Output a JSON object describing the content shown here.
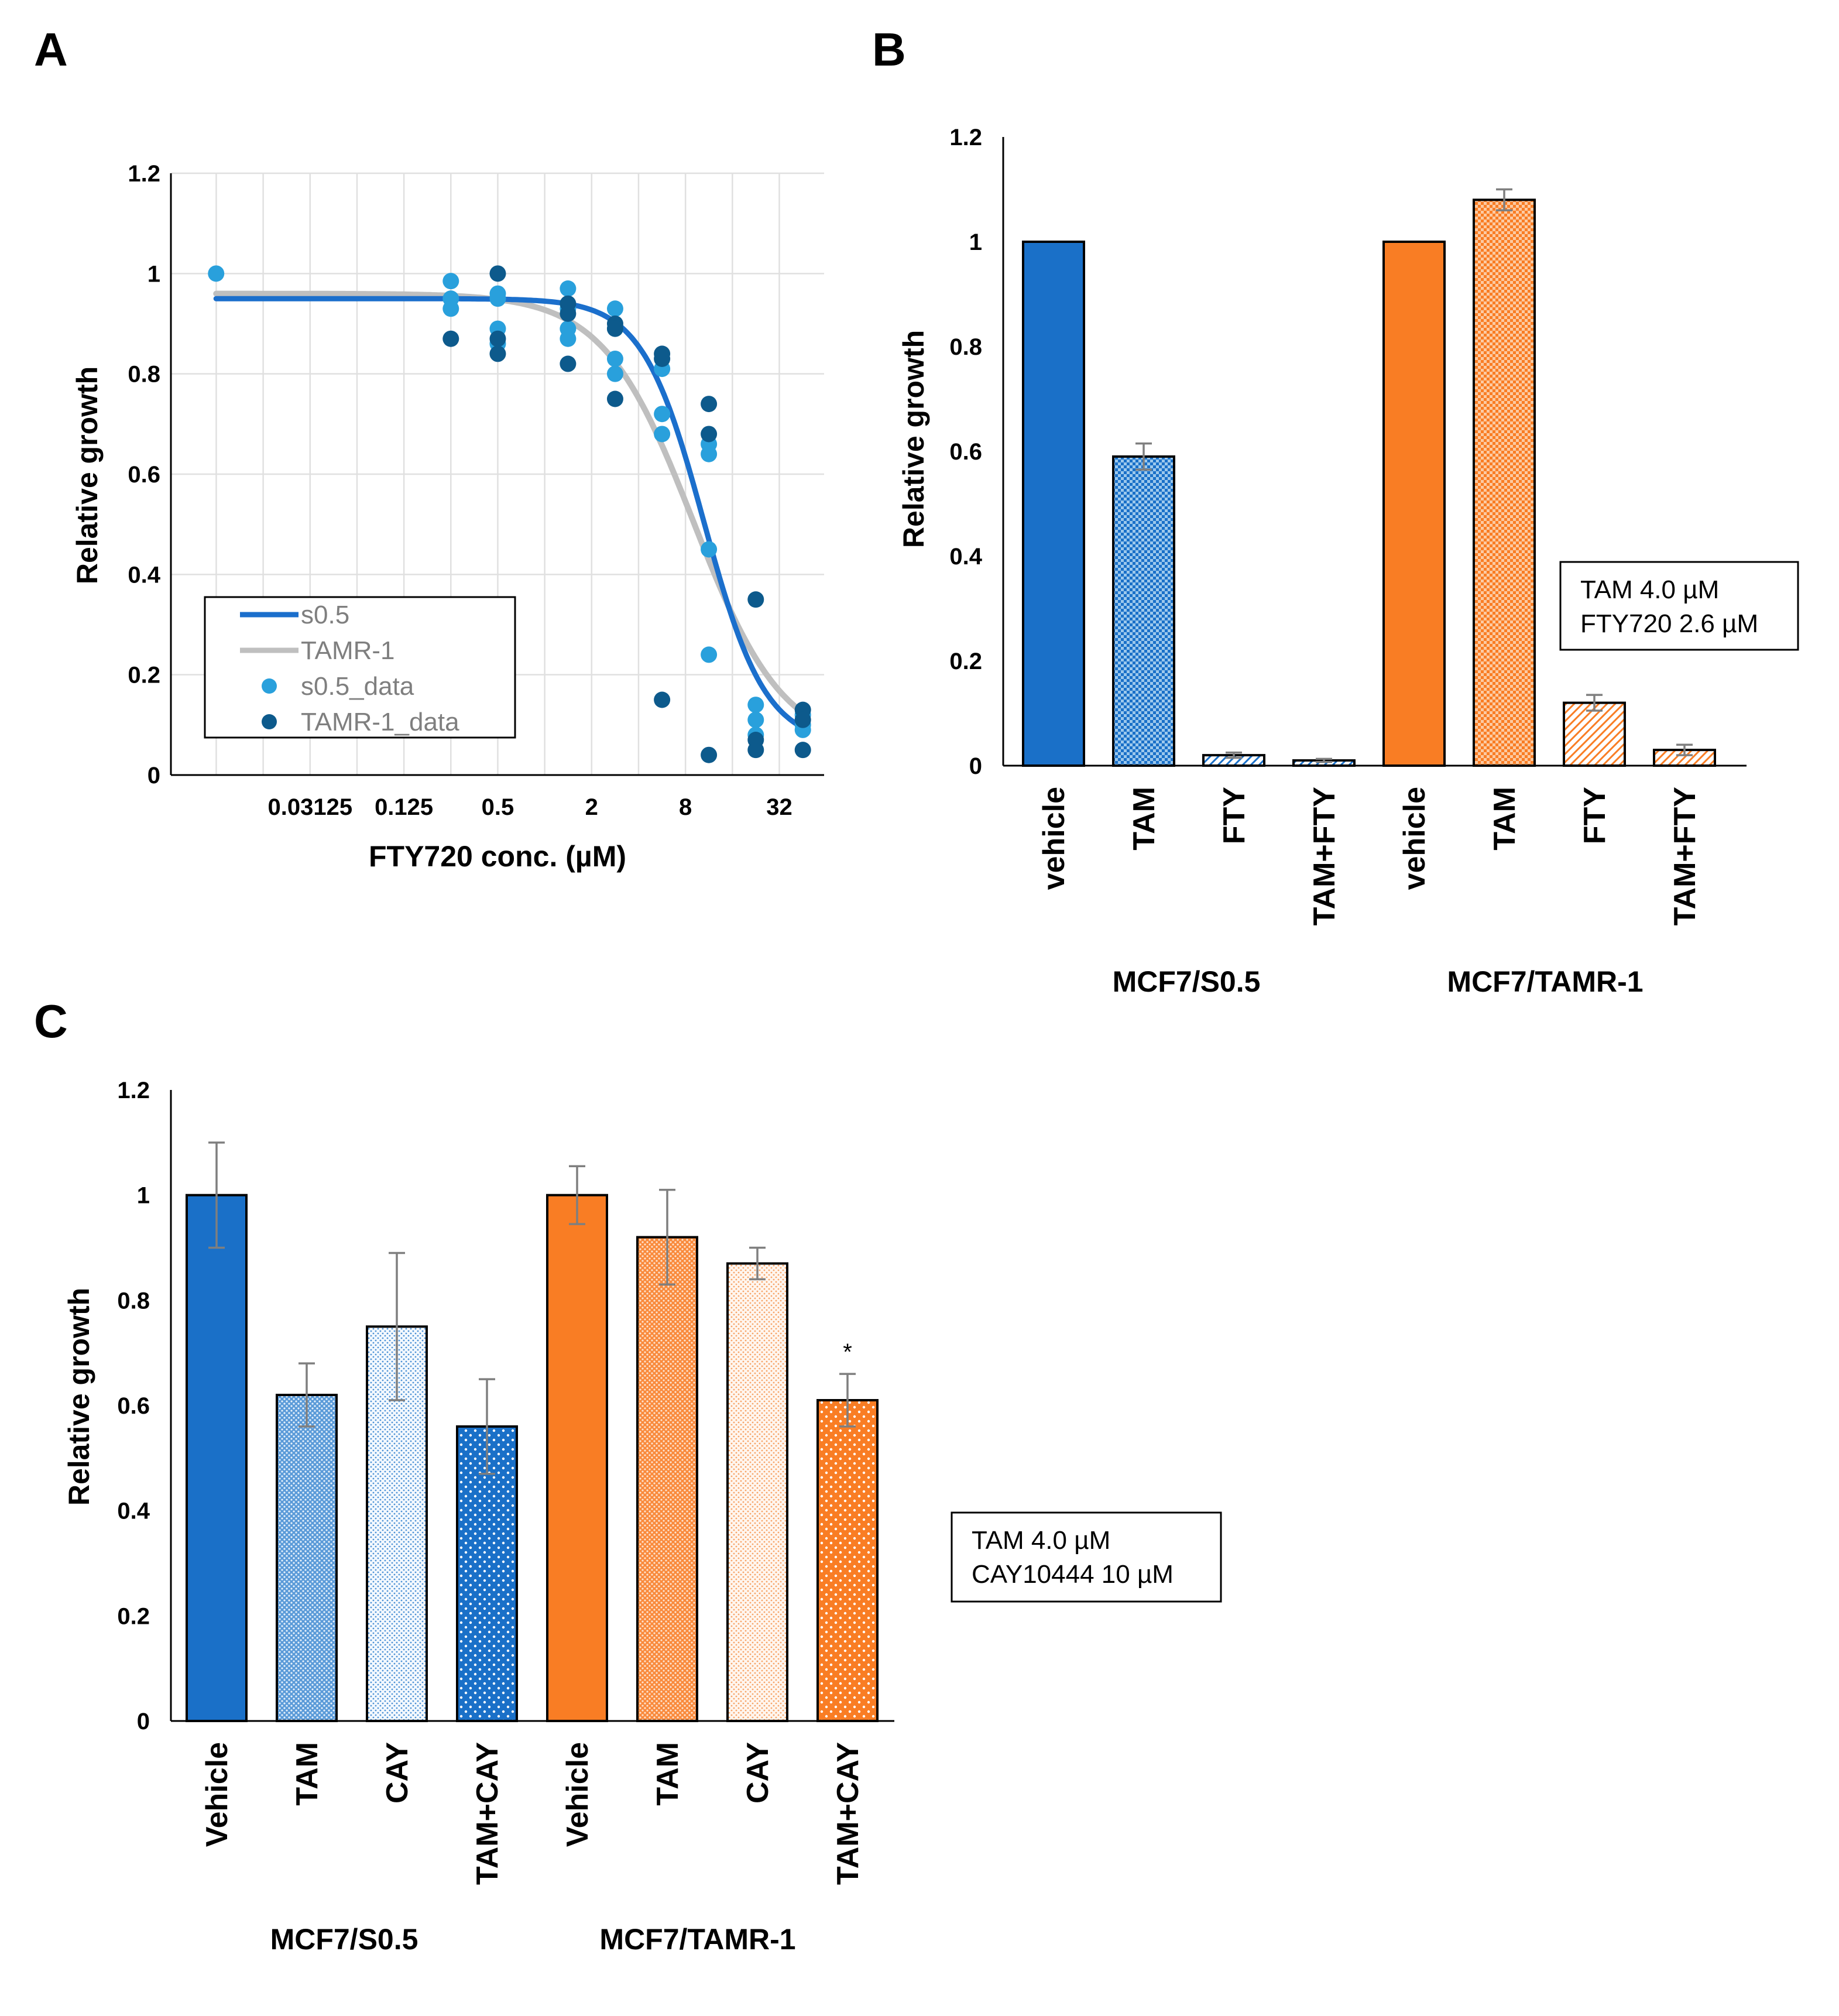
{
  "colors": {
    "blue": "#1a70c8",
    "orange": "#f97d24",
    "curve_s05": "#1b6fcc",
    "curve_tamr": "#bfbfbf",
    "data_s05": "#29a0dc",
    "data_tamr": "#0d5a8c"
  },
  "chart_data": [
    {
      "panel": "A",
      "type": "scatter",
      "xlabel": "FTY720 conc. (µM)",
      "ylabel": "Relative growth",
      "xscale": "log2",
      "ylim": [
        0,
        1.2
      ],
      "yticks": [
        "0",
        "0.2",
        "0.4",
        "0.6",
        "0.8",
        "1",
        "1.2"
      ],
      "xtick_labels": [
        "0.03125",
        "0.125",
        "0.5",
        "2",
        "8",
        "32"
      ],
      "xtick_values": [
        0.03125,
        0.125,
        0.5,
        2,
        8,
        32
      ],
      "grid": true,
      "legend_position": "bottom-left",
      "legend": [
        "s0.5",
        "TAMR-1",
        "s0.5_data",
        "TAMR-1_data"
      ],
      "series": [
        {
          "name": "s0.5",
          "kind": "fit-line",
          "color_key": "curve_s05",
          "top": 0.95,
          "bottom": 0.06,
          "ic50": 10.5,
          "hill": 2.2
        },
        {
          "name": "TAMR-1",
          "kind": "fit-line",
          "color_key": "curve_tamr",
          "top": 0.96,
          "bottom": 0.05,
          "ic50": 9.0,
          "hill": 1.5
        },
        {
          "name": "s0.5_data",
          "kind": "points",
          "color_key": "data_s05",
          "x": [
            0.0078,
            0.25,
            0.25,
            0.25,
            0.5,
            0.5,
            0.5,
            0.5,
            1.41,
            1.41,
            1.41,
            1.41,
            2.83,
            2.83,
            2.83,
            2.83,
            5.66,
            5.66,
            5.66,
            11.3,
            11.3,
            11.3,
            11.3,
            22.6,
            22.6,
            22.6,
            45.3,
            45.3,
            45.3
          ],
          "y": [
            1.0,
            0.985,
            0.95,
            0.93,
            0.96,
            0.95,
            0.89,
            0.86,
            0.97,
            0.93,
            0.89,
            0.87,
            0.93,
            0.83,
            0.8,
            0.89,
            0.81,
            0.72,
            0.68,
            0.64,
            0.45,
            0.24,
            0.66,
            0.14,
            0.11,
            0.08,
            0.1,
            0.12,
            0.09
          ]
        },
        {
          "name": "TAMR-1_data",
          "kind": "points",
          "color_key": "data_tamr",
          "x": [
            0.25,
            0.5,
            0.5,
            0.5,
            1.41,
            1.41,
            1.41,
            2.83,
            2.83,
            2.83,
            5.66,
            5.66,
            5.66,
            11.3,
            11.3,
            11.3,
            22.6,
            22.6,
            22.6,
            45.3,
            45.3,
            45.3
          ],
          "y": [
            0.87,
            1.0,
            0.87,
            0.84,
            0.94,
            0.92,
            0.82,
            0.9,
            0.89,
            0.75,
            0.84,
            0.83,
            0.15,
            0.74,
            0.68,
            0.04,
            0.35,
            0.07,
            0.05,
            0.13,
            0.11,
            0.05
          ]
        }
      ]
    },
    {
      "panel": "B",
      "type": "bar",
      "ylabel": "Relative growth",
      "ylim": [
        0,
        1.2
      ],
      "yticks": [
        "0",
        "0.2",
        "0.4",
        "0.6",
        "0.8",
        "1",
        "1.2"
      ],
      "categories": [
        "vehicle",
        "TAM",
        "FTY",
        "TAM+FTY",
        "vehicle",
        "TAM",
        "FTY",
        "TAM+FTY"
      ],
      "groups": [
        "MCF7/S0.5",
        "MCF7/TAMR-1"
      ],
      "values": [
        1.0,
        0.59,
        0.02,
        0.01,
        1.0,
        1.08,
        0.12,
        0.03
      ],
      "errors": [
        0,
        0.025,
        0.005,
        0.003,
        0,
        0.02,
        0.015,
        0.01
      ],
      "fill": [
        "solid",
        "check",
        "diag",
        "diag",
        "solid",
        "check",
        "diag",
        "diag"
      ],
      "group_color": [
        "blue",
        "blue",
        "blue",
        "blue",
        "orange",
        "orange",
        "orange",
        "orange"
      ],
      "note": [
        "TAM 4.0 µM",
        "FTY720 2.6 µM"
      ]
    },
    {
      "panel": "C",
      "type": "bar",
      "ylabel": "Relative growth",
      "ylim": [
        0,
        1.2
      ],
      "yticks": [
        "0",
        "0.2",
        "0.4",
        "0.6",
        "0.8",
        "1",
        "1.2"
      ],
      "categories": [
        "Vehicle",
        "TAM",
        "CAY",
        "TAM+CAY",
        "Vehicle",
        "TAM",
        "CAY",
        "TAM+CAY"
      ],
      "groups": [
        "MCF7/S0.5",
        "MCF7/TAMR-1"
      ],
      "values": [
        1.0,
        0.62,
        0.75,
        0.56,
        1.0,
        0.92,
        0.87,
        0.61
      ],
      "errors": [
        0.1,
        0.06,
        0.14,
        0.09,
        0.055,
        0.09,
        0.03,
        0.05
      ],
      "fill": [
        "solid",
        "dense",
        "light",
        "dots",
        "solid",
        "dense",
        "light",
        "dots"
      ],
      "group_color": [
        "blue",
        "blue",
        "blue",
        "blue",
        "orange",
        "orange",
        "orange",
        "orange"
      ],
      "annotation": "*",
      "annotation_index": 7,
      "note": [
        "TAM 4.0 µM",
        "CAY10444 10 µM"
      ]
    }
  ],
  "panel_letters": [
    "A",
    "B",
    "C"
  ]
}
